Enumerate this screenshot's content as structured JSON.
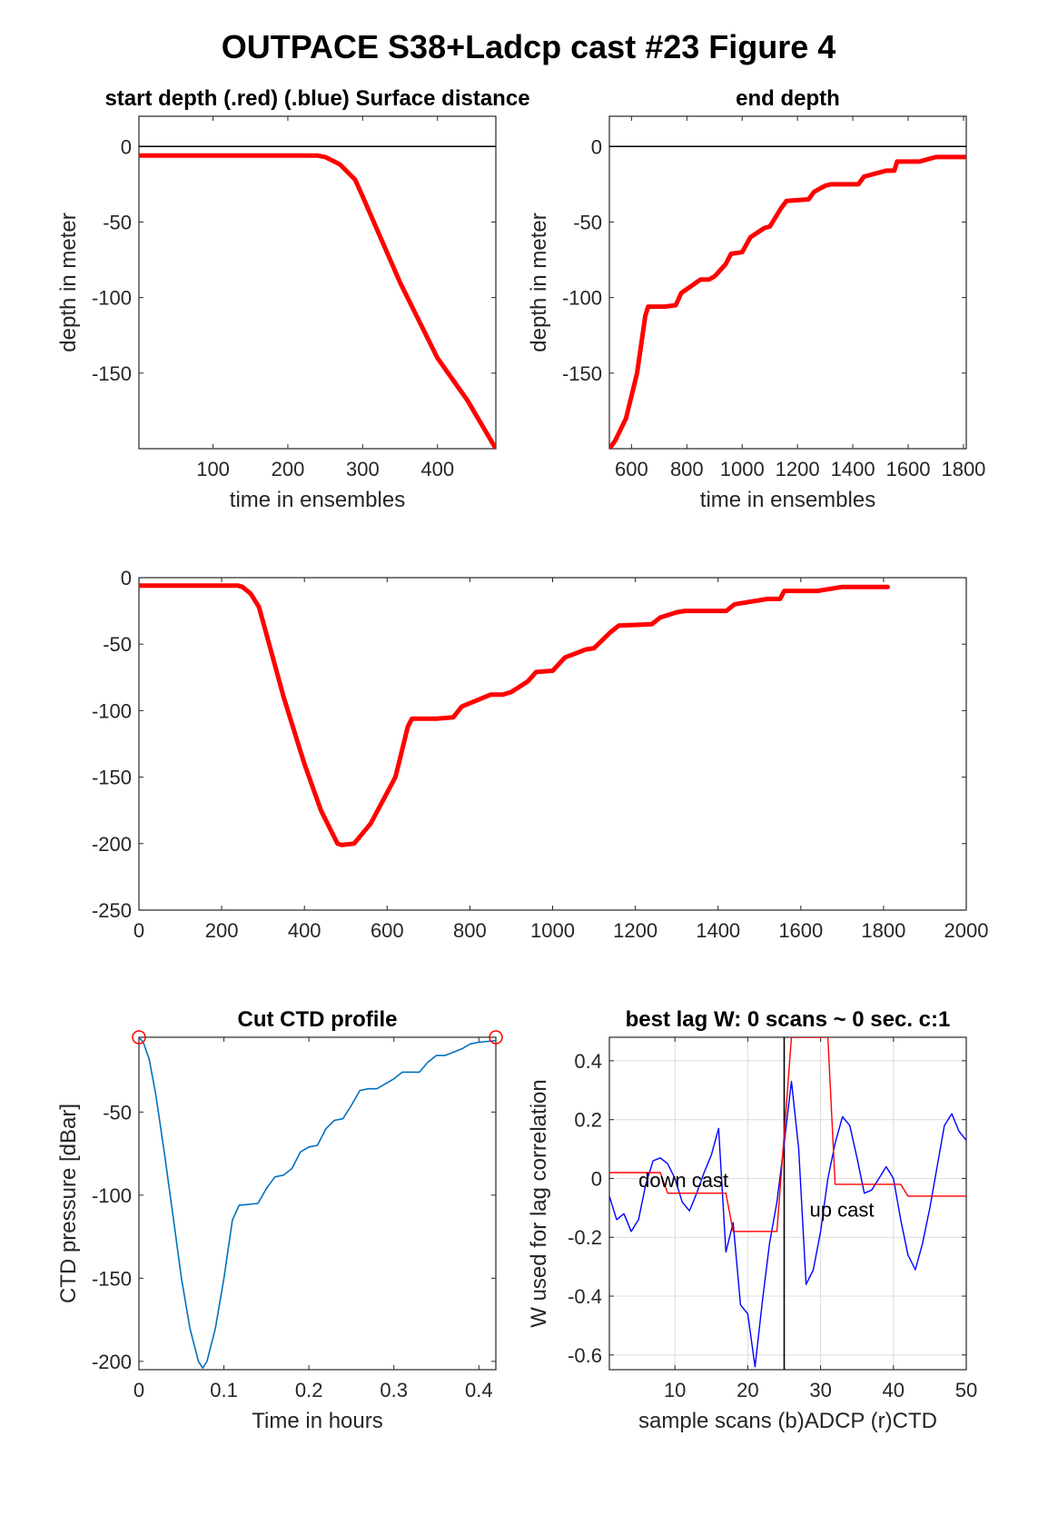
{
  "figure": {
    "title": "OUTPACE S38+Ladcp cast #23   Figure 4"
  },
  "chart_data": [
    {
      "id": "start",
      "type": "line",
      "title": "start depth (.red) (.blue) Surface distance",
      "xlabel": "time in ensembles",
      "ylabel": "depth in meter",
      "xlim": [
        1,
        478
      ],
      "ylim": [
        -200,
        20
      ],
      "xticks": [
        100,
        200,
        300,
        400
      ],
      "yticks": [
        -150,
        -100,
        -50,
        0
      ],
      "grid": false,
      "reference_line": 0,
      "series": [
        {
          "color": "#ff0000",
          "x": [
            1,
            100,
            200,
            240,
            250,
            270,
            290,
            300,
            350,
            400,
            440,
            478
          ],
          "y": [
            -6,
            -6,
            -6,
            -6,
            -7,
            -12,
            -22,
            -33,
            -90,
            -140,
            -168,
            -200
          ]
        }
      ]
    },
    {
      "id": "end",
      "type": "line",
      "title": "end depth",
      "xlabel": "time in ensembles",
      "ylabel": "depth in meter",
      "xlim": [
        520,
        1810
      ],
      "ylim": [
        -200,
        20
      ],
      "xticks": [
        600,
        800,
        1000,
        1200,
        1400,
        1600,
        1800
      ],
      "yticks": [
        -150,
        -100,
        -50,
        0
      ],
      "grid": false,
      "reference_line": 0,
      "series": [
        {
          "color": "#ff0000",
          "x": [
            520,
            540,
            580,
            620,
            650,
            660,
            720,
            760,
            780,
            850,
            880,
            900,
            940,
            960,
            1000,
            1030,
            1080,
            1100,
            1140,
            1160,
            1240,
            1260,
            1300,
            1320,
            1420,
            1440,
            1520,
            1550,
            1560,
            1640,
            1680,
            1700,
            1810
          ],
          "y": [
            -200,
            -195,
            -180,
            -150,
            -112,
            -106,
            -106,
            -105,
            -97,
            -88,
            -88,
            -86,
            -78,
            -71,
            -70,
            -60,
            -54,
            -53,
            -41,
            -36,
            -35,
            -30,
            -26,
            -25,
            -25,
            -20,
            -16,
            -16,
            -10,
            -10,
            -8,
            -7,
            -7
          ]
        }
      ]
    },
    {
      "id": "full",
      "type": "line",
      "title": "",
      "xlabel": "",
      "ylabel": "",
      "xlim": [
        0,
        2000
      ],
      "ylim": [
        -250,
        0
      ],
      "xticks": [
        0,
        200,
        400,
        600,
        800,
        1000,
        1200,
        1400,
        1600,
        1800,
        2000
      ],
      "yticks": [
        -250,
        -200,
        -150,
        -100,
        -50,
        0
      ],
      "grid": false,
      "series": [
        {
          "color": "#ff0000",
          "x": [
            1,
            100,
            200,
            240,
            250,
            270,
            290,
            300,
            350,
            400,
            440,
            480,
            490,
            520,
            560,
            620,
            650,
            660,
            720,
            760,
            780,
            850,
            880,
            900,
            940,
            960,
            1000,
            1030,
            1080,
            1100,
            1140,
            1160,
            1240,
            1260,
            1300,
            1320,
            1420,
            1440,
            1520,
            1550,
            1560,
            1640,
            1680,
            1700,
            1810
          ],
          "y": [
            -6,
            -6,
            -6,
            -6,
            -7,
            -12,
            -22,
            -33,
            -90,
            -140,
            -175,
            -200,
            -201,
            -200,
            -185,
            -150,
            -112,
            -106,
            -106,
            -105,
            -97,
            -88,
            -88,
            -86,
            -78,
            -71,
            -70,
            -60,
            -54,
            -53,
            -41,
            -36,
            -35,
            -30,
            -26,
            -25,
            -25,
            -20,
            -16,
            -16,
            -10,
            -10,
            -8,
            -7,
            -7
          ]
        }
      ]
    },
    {
      "id": "ctd",
      "type": "line",
      "title": "Cut CTD profile",
      "xlabel": "Time in hours",
      "ylabel": "CTD pressure [dBar]",
      "xlim": [
        0,
        0.42
      ],
      "ylim": [
        -205,
        -5
      ],
      "xticks": [
        0,
        0.1,
        0.2,
        0.3,
        0.4
      ],
      "yticks": [
        -200,
        -150,
        -100,
        -50
      ],
      "grid": false,
      "cut_markers": [
        {
          "x": 0,
          "y": -5
        },
        {
          "x": 0.42,
          "y": -5
        }
      ],
      "series": [
        {
          "color": "#0072bd",
          "x": [
            0,
            0.005,
            0.012,
            0.02,
            0.03,
            0.04,
            0.05,
            0.06,
            0.07,
            0.075,
            0.08,
            0.09,
            0.1,
            0.11,
            0.118,
            0.12,
            0.14,
            0.15,
            0.16,
            0.17,
            0.18,
            0.19,
            0.2,
            0.21,
            0.22,
            0.23,
            0.24,
            0.25,
            0.26,
            0.27,
            0.28,
            0.3,
            0.31,
            0.33,
            0.34,
            0.35,
            0.36,
            0.38,
            0.39,
            0.4,
            0.42
          ],
          "y": [
            -5,
            -8,
            -18,
            -40,
            -75,
            -112,
            -150,
            -180,
            -200,
            -204,
            -200,
            -180,
            -150,
            -115,
            -106,
            -106,
            -105,
            -96,
            -89,
            -88,
            -84,
            -74,
            -71,
            -70,
            -60,
            -55,
            -54,
            -46,
            -37,
            -36,
            -36,
            -30,
            -26,
            -26,
            -20,
            -16,
            -16,
            -12,
            -9,
            -8,
            -7
          ]
        }
      ]
    },
    {
      "id": "lag",
      "type": "line",
      "title": "best lag W: 0 scans ~ 0 sec.  c:1",
      "xlabel": "sample scans (b)ADCP (r)CTD",
      "ylabel": "W used for lag correlation",
      "xlim": [
        1,
        50
      ],
      "ylim": [
        -0.65,
        0.48
      ],
      "xticks": [
        10,
        20,
        30,
        40,
        50
      ],
      "yticks": [
        -0.6,
        -0.4,
        -0.2,
        0,
        0.2,
        0.4
      ],
      "grid": true,
      "vline": 25,
      "annotations": [
        {
          "text": "down cast",
          "x": 5,
          "y": -0.03
        },
        {
          "text": "up cast",
          "x": 28.5,
          "y": -0.13
        }
      ],
      "series": [
        {
          "color": "#0000ff",
          "x": [
            1,
            2,
            3,
            4,
            5,
            6,
            7,
            8,
            9,
            10,
            11,
            12,
            13,
            14,
            15,
            16,
            17,
            18,
            19,
            20,
            21,
            22,
            23,
            24,
            25,
            26,
            27,
            28,
            29,
            30,
            31,
            32,
            33,
            34,
            35,
            36,
            37,
            38,
            39,
            40,
            41,
            42,
            43,
            44,
            45,
            46,
            47,
            48,
            49,
            50
          ],
          "y": [
            -0.06,
            -0.14,
            -0.12,
            -0.18,
            -0.14,
            -0.02,
            0.06,
            0.07,
            0.05,
            0.0,
            -0.08,
            -0.11,
            -0.05,
            0.02,
            0.08,
            0.17,
            -0.25,
            -0.15,
            -0.43,
            -0.46,
            -0.64,
            -0.42,
            -0.22,
            -0.08,
            0.12,
            0.33,
            0.1,
            -0.36,
            -0.31,
            -0.18,
            0.0,
            0.12,
            0.21,
            0.18,
            0.07,
            -0.05,
            -0.04,
            0.0,
            0.04,
            0.0,
            -0.14,
            -0.26,
            -0.31,
            -0.22,
            -0.1,
            0.04,
            0.18,
            0.22,
            0.16,
            0.13
          ]
        },
        {
          "color": "#ff0000",
          "x": [
            1,
            8,
            9,
            17,
            18,
            24,
            25,
            26,
            31,
            32,
            41,
            42,
            50
          ],
          "y": [
            0.02,
            0.02,
            -0.05,
            -0.05,
            -0.18,
            -0.18,
            0.15,
            0.48,
            0.48,
            -0.02,
            -0.02,
            -0.06,
            -0.06
          ]
        }
      ]
    }
  ]
}
